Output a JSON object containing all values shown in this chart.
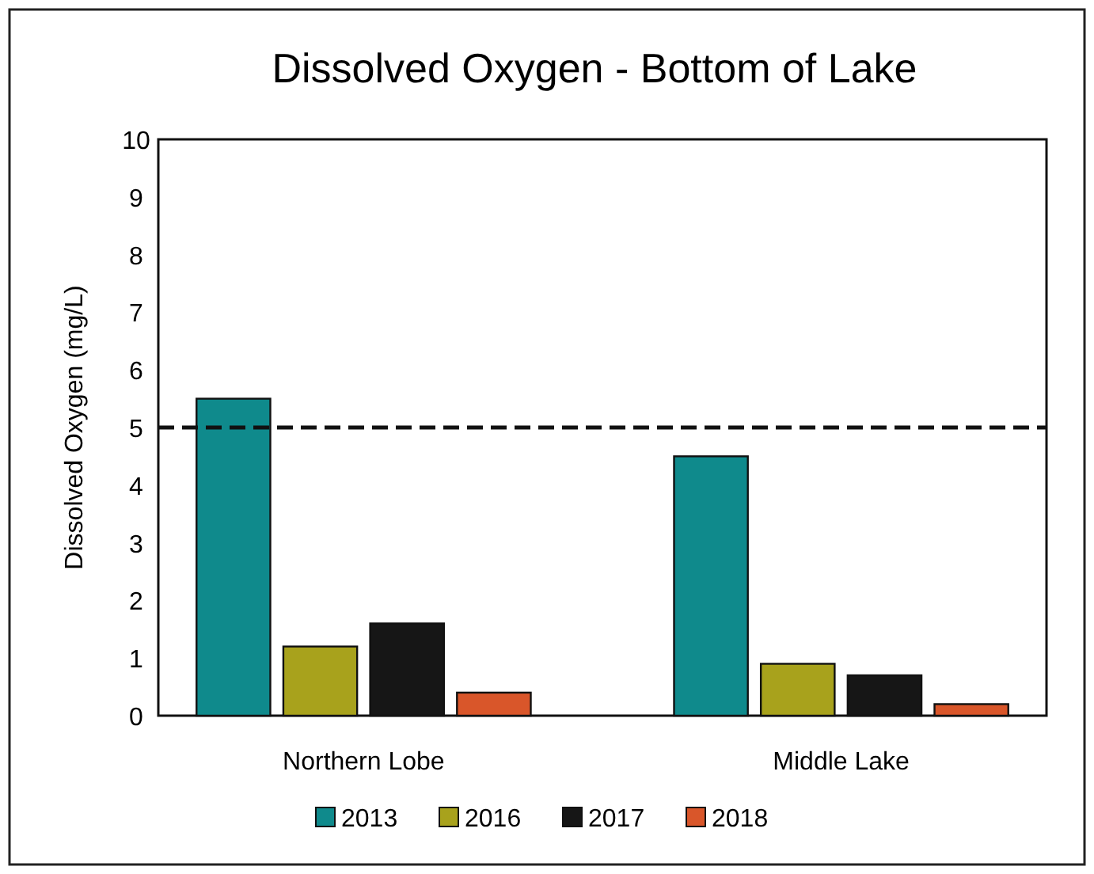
{
  "chart_data": {
    "type": "bar",
    "title": "Dissolved Oxygen - Bottom of Lake",
    "ylabel": "Dissolved Oxygen (mg/L)",
    "categories": [
      "Northern Lobe",
      "Middle Lake"
    ],
    "series": [
      {
        "name": "2013",
        "color": "#0f8a8c",
        "values": [
          5.5,
          4.5
        ]
      },
      {
        "name": "2016",
        "color": "#a8a21c",
        "values": [
          1.2,
          0.9
        ]
      },
      {
        "name": "2017",
        "color": "#161616",
        "values": [
          1.6,
          0.7
        ]
      },
      {
        "name": "2018",
        "color": "#d9562a",
        "values": [
          0.4,
          0.2
        ]
      }
    ],
    "ylim": [
      0,
      10
    ],
    "yticks": [
      0,
      1,
      2,
      3,
      4,
      5,
      6,
      7,
      8,
      9,
      10
    ],
    "ref_lines": [
      {
        "axis": "y",
        "value": 5,
        "line_style": "dashed",
        "color": "#111111"
      }
    ],
    "grid": false,
    "legend": "bottom"
  }
}
